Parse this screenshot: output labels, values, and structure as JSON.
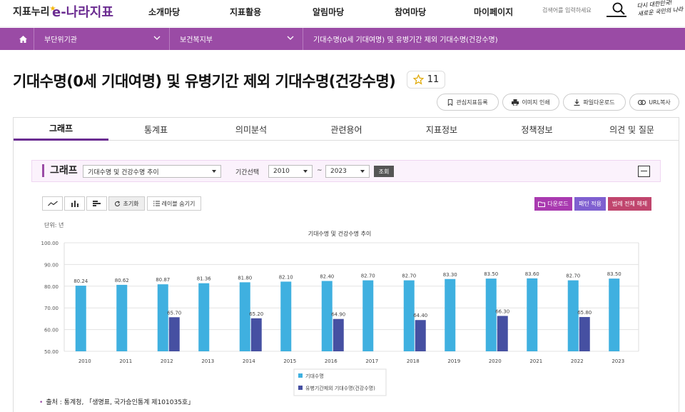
{
  "header": {
    "logo_main": "지표누리",
    "logo_sub": "e-나라지표",
    "nav": [
      "소개마당",
      "지표활용",
      "알림마당",
      "참여마당",
      "마이페이지"
    ],
    "search_placeholder": "검색어를 입력하세요",
    "slogan_line1": "다시 대한민국!",
    "slogan_line2": "새로운 국민의 나라"
  },
  "breadcrumb": {
    "level1": "부단위기관",
    "level2": "보건복지부",
    "level3": "기대수명(0세 기대여명) 및 유병기간 제외 기대수명(건강수명)"
  },
  "page": {
    "title": "기대수명(0세 기대여명) 및 유병기간 제외 기대수명(건강수명)",
    "favorite_count": "11"
  },
  "actions": {
    "bookmark": "관심지표등록",
    "print": "이미지 인쇄",
    "download": "파일다운로드",
    "url": "URL복사"
  },
  "tabs": [
    "그래프",
    "통계표",
    "의미분석",
    "관련용어",
    "지표정보",
    "정책정보",
    "의견 및 질문"
  ],
  "graph_bar": {
    "title": "그래프",
    "chart_select": "기대수명 및 건강수명 추이",
    "period_label": "기간선택",
    "from_year": "2010",
    "tilde": "~",
    "to_year": "2023",
    "search_button": "조회"
  },
  "toolbar": {
    "reset": "초기화",
    "hide_labels": "레이블 숨기기",
    "download": "다운로드",
    "pattern": "패턴 적용",
    "legend_clear": "범례 전체 해제"
  },
  "unit": "단위: 년",
  "source": "출처 : 통계청, 「생명표, 국가승인통계 제101035호」",
  "colors": {
    "brand": "#6b2c91",
    "crumb_bg": "#9a4ba5",
    "series1": "#3fb0e0",
    "series2": "#4650a2",
    "download_btn": "#a93ab0",
    "pattern_btn": "#7f5fd0",
    "legend_btn": "#c0456d"
  },
  "chart_data": {
    "type": "bar",
    "title": "기대수명 및 건강수명 추이",
    "categories": [
      "2010",
      "2011",
      "2012",
      "2013",
      "2014",
      "2015",
      "2016",
      "2017",
      "2018",
      "2019",
      "2020",
      "2021",
      "2022",
      "2023"
    ],
    "series": [
      {
        "name": "기대수명",
        "values": [
          80.24,
          80.62,
          80.87,
          81.36,
          81.8,
          82.1,
          82.4,
          82.7,
          82.7,
          83.3,
          83.5,
          83.6,
          82.7,
          83.5
        ]
      },
      {
        "name": "유병기간제외 기대수명(건강수명)",
        "values": [
          null,
          null,
          65.7,
          null,
          65.2,
          null,
          64.9,
          null,
          64.4,
          null,
          66.3,
          null,
          65.8,
          null
        ]
      }
    ],
    "y_ticks": [
      "100.00",
      "90.00",
      "80.00",
      "70.00",
      "60.00",
      "50.00"
    ],
    "ylim": [
      50,
      100
    ],
    "grid": true,
    "legend_position": "bottom"
  }
}
